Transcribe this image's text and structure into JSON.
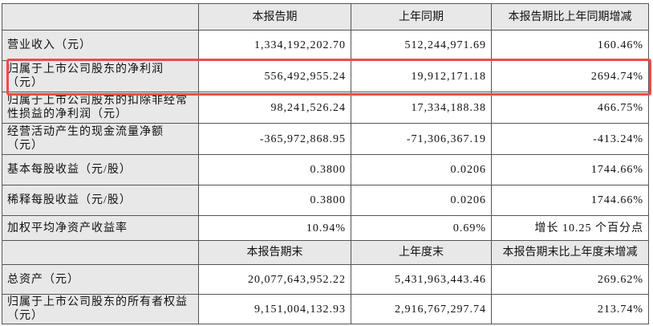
{
  "table": {
    "header": [
      "",
      "本报告期",
      "上年同期",
      "本报告期比上年同期增减"
    ],
    "rows": [
      [
        "营业收入（元）",
        "1,334,192,202.70",
        "512,244,971.69",
        "160.46%"
      ],
      [
        "归属于上市公司股东的净利润（元）",
        "556,492,955.24",
        "19,912,171.18",
        "2694.74%"
      ],
      [
        "归属于上市公司股东的扣除非经常性损益的净利润（元）",
        "98,241,526.24",
        "17,334,188.38",
        "466.75%"
      ],
      [
        "经营活动产生的现金流量净额（元）",
        "-365,972,868.95",
        "-71,306,367.19",
        "-413.24%"
      ],
      [
        "基本每股收益（元/股）",
        "0.3800",
        "0.0206",
        "1744.66%"
      ],
      [
        "稀释每股收益（元/股）",
        "0.3800",
        "0.0206",
        "1744.66%"
      ],
      [
        "加权平均净资产收益率",
        "10.94%",
        "0.69%",
        "增长 10.25 个百分点"
      ]
    ],
    "header2": [
      "",
      "本报告期末",
      "上年度末",
      "本报告期末比上年度末增减"
    ],
    "rows2": [
      [
        "总资产（元）",
        "20,077,643,952.22",
        "5,431,963,443.46",
        "269.62%"
      ],
      [
        "归属于上市公司股东的所有者权益（元）",
        "9,151,004,132.93",
        "2,916,767,297.74",
        "213.74%"
      ]
    ]
  }
}
